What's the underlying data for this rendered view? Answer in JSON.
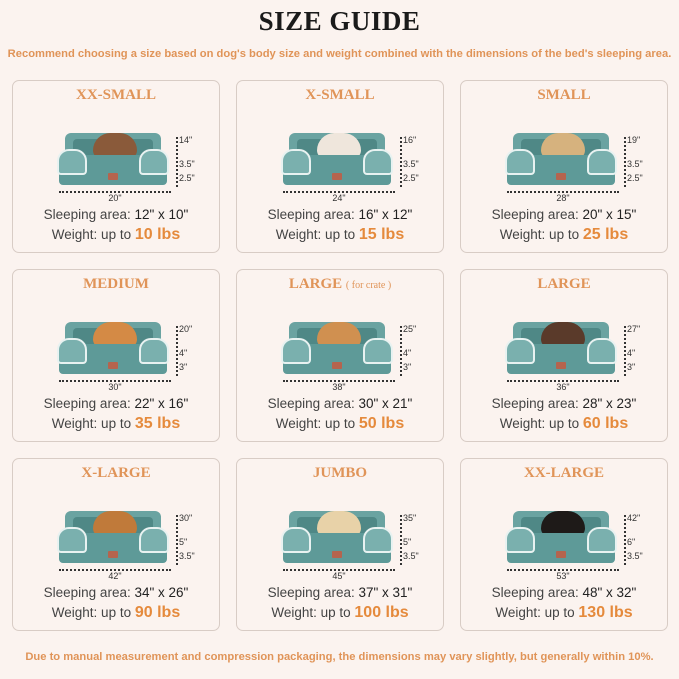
{
  "title": "SIZE GUIDE",
  "subtitle": "Recommend choosing a size based on dog's body size and weight combined with the dimensions of the bed's sleeping area.",
  "footer": "Due to manual measurement and compression packaging, the dimensions may vary slightly, but generally within 10%.",
  "sleeping_label": "Sleeping area:",
  "weight_label": "Weight:  up to",
  "sizes": [
    {
      "name": "XX-SMALL",
      "note": "",
      "length": "20\"",
      "back_height": "14\"",
      "bolster": "3.5\"",
      "base": "2.5\"",
      "sleeping_area": "12\" x 10\"",
      "weight": "10 lbs",
      "pet_color": "#8a5a3a"
    },
    {
      "name": "X-SMALL",
      "note": "",
      "length": "24\"",
      "back_height": "16\"",
      "bolster": "3.5\"",
      "base": "2.5\"",
      "sleeping_area": "16\" x 12\"",
      "weight": "15 lbs",
      "pet_color": "#efe6dc"
    },
    {
      "name": "SMALL",
      "note": "",
      "length": "28\"",
      "back_height": "19\"",
      "bolster": "3.5\"",
      "base": "2.5\"",
      "sleeping_area": "20\" x 15\"",
      "weight": "25 lbs",
      "pet_color": "#d6b27e"
    },
    {
      "name": "MEDIUM",
      "note": "",
      "length": "30\"",
      "back_height": "20\"",
      "bolster": "4\"",
      "base": "3\"",
      "sleeping_area": "22\" x 16\"",
      "weight": "35 lbs",
      "pet_color": "#d48a45"
    },
    {
      "name": "LARGE",
      "note": "( for crate )",
      "length": "38\"",
      "back_height": "25\"",
      "bolster": "4\"",
      "base": "3\"",
      "sleeping_area": "30\" x 21\"",
      "weight": "50 lbs",
      "pet_color": "#d09050"
    },
    {
      "name": "LARGE",
      "note": "",
      "length": "36\"",
      "back_height": "27\"",
      "bolster": "4\"",
      "base": "3\"",
      "sleeping_area": "28\" x 23\"",
      "weight": "60 lbs",
      "pet_color": "#5a3a2a"
    },
    {
      "name": "X-LARGE",
      "note": "",
      "length": "42\"",
      "back_height": "30\"",
      "bolster": "5\"",
      "base": "3.5\"",
      "sleeping_area": "34\" x 26\"",
      "weight": "90 lbs",
      "pet_color": "#c07a3a"
    },
    {
      "name": "JUMBO",
      "note": "",
      "length": "45\"",
      "back_height": "35\"",
      "bolster": "5\"",
      "base": "3.5\"",
      "sleeping_area": "37\" x 31\"",
      "weight": "100 lbs",
      "pet_color": "#e8d2a8"
    },
    {
      "name": "XX-LARGE",
      "note": "",
      "length": "53\"",
      "back_height": "42\"",
      "bolster": "6\"",
      "base": "3.5\"",
      "sleeping_area": "48\" x 32\"",
      "weight": "130 lbs",
      "pet_color": "#1e1a18"
    }
  ]
}
